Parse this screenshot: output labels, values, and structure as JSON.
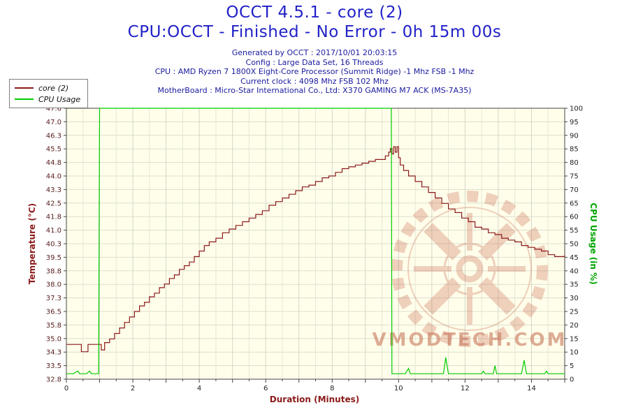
{
  "header": {
    "info_lines": [
      "Generated by OCCT : 2017/10/01 20:03:15",
      "Config : Large Data Set, 16 Threads",
      "CPU : AMD Ryzen 7 1800X Eight-Core Processor (Summit Ridge) -1 Mhz FSB -1 Mhz",
      "Current clock : 4098 Mhz FSB 102 Mhz",
      "MotherBoard : Micro-Star International Co., Ltd: X370 GAMING M7 ACK (MS-7A35)"
    ]
  },
  "watermark": "VMODTECH.COM",
  "chart_data": {
    "type": "line",
    "title": "OCCT 4.5.1 - core (2)",
    "subtitle": "CPU:OCCT - Finished - No Error - 0h 15m 00s",
    "xlabel": "Duration (Minutes)",
    "ylabel_left": "Temperature (°C)",
    "ylabel_right": "CPU Usage (in %)",
    "xlim": [
      0,
      15
    ],
    "ylim_left": [
      32.8,
      47.6
    ],
    "ylim_right": [
      0,
      100
    ],
    "x_ticks": [
      0,
      2,
      4,
      6,
      8,
      10,
      12,
      14
    ],
    "y_ticks_left": [
      "47.6",
      "47.0",
      "46.3",
      "45.5",
      "44.8",
      "44.0",
      "43.3",
      "42.5",
      "41.8",
      "41.0",
      "40.3",
      "39.5",
      "38.8",
      "38.0",
      "37.3",
      "36.5",
      "35.8",
      "35.0",
      "34.3",
      "33.5",
      "32.8"
    ],
    "y_ticks_right": [
      "100",
      "95",
      "90",
      "85",
      "80",
      "75",
      "70",
      "65",
      "60",
      "55",
      "50",
      "45",
      "40",
      "35",
      "30",
      "25",
      "20",
      "15",
      "10",
      "5",
      "0"
    ],
    "grid": true,
    "plot_bg": "#FFFEEA",
    "legend_position": "top-left",
    "series": [
      {
        "name": "core (2)",
        "axis": "left",
        "color": "#8B1A1A",
        "step": true,
        "points": [
          [
            0,
            34.7
          ],
          [
            0.4,
            34.7
          ],
          [
            0.45,
            34.3
          ],
          [
            0.6,
            34.3
          ],
          [
            0.65,
            34.7
          ],
          [
            1.0,
            34.7
          ],
          [
            1.05,
            34.4
          ],
          [
            1.15,
            34.8
          ],
          [
            1.3,
            35.0
          ],
          [
            1.45,
            35.3
          ],
          [
            1.6,
            35.6
          ],
          [
            1.75,
            35.9
          ],
          [
            1.9,
            36.2
          ],
          [
            2.05,
            36.5
          ],
          [
            2.2,
            36.8
          ],
          [
            2.35,
            37.0
          ],
          [
            2.5,
            37.3
          ],
          [
            2.65,
            37.5
          ],
          [
            2.8,
            37.8
          ],
          [
            2.95,
            38.0
          ],
          [
            3.1,
            38.3
          ],
          [
            3.25,
            38.5
          ],
          [
            3.4,
            38.8
          ],
          [
            3.55,
            39.0
          ],
          [
            3.7,
            39.2
          ],
          [
            3.85,
            39.5
          ],
          [
            4.0,
            39.8
          ],
          [
            4.15,
            40.1
          ],
          [
            4.3,
            40.3
          ],
          [
            4.5,
            40.5
          ],
          [
            4.7,
            40.8
          ],
          [
            4.9,
            41.0
          ],
          [
            5.1,
            41.2
          ],
          [
            5.3,
            41.4
          ],
          [
            5.5,
            41.6
          ],
          [
            5.7,
            41.8
          ],
          [
            5.9,
            42.0
          ],
          [
            6.1,
            42.3
          ],
          [
            6.3,
            42.5
          ],
          [
            6.5,
            42.7
          ],
          [
            6.7,
            42.9
          ],
          [
            6.9,
            43.1
          ],
          [
            7.1,
            43.3
          ],
          [
            7.3,
            43.4
          ],
          [
            7.5,
            43.6
          ],
          [
            7.7,
            43.8
          ],
          [
            7.9,
            43.9
          ],
          [
            8.1,
            44.1
          ],
          [
            8.3,
            44.3
          ],
          [
            8.5,
            44.4
          ],
          [
            8.7,
            44.5
          ],
          [
            8.9,
            44.6
          ],
          [
            9.1,
            44.7
          ],
          [
            9.3,
            44.8
          ],
          [
            9.5,
            44.8
          ],
          [
            9.6,
            45.0
          ],
          [
            9.7,
            45.2
          ],
          [
            9.75,
            45.4
          ],
          [
            9.8,
            45.1
          ],
          [
            9.85,
            45.5
          ],
          [
            9.9,
            45.2
          ],
          [
            9.95,
            45.5
          ],
          [
            10.0,
            44.9
          ],
          [
            10.05,
            44.5
          ],
          [
            10.15,
            44.2
          ],
          [
            10.3,
            43.9
          ],
          [
            10.5,
            43.6
          ],
          [
            10.7,
            43.3
          ],
          [
            10.9,
            43.0
          ],
          [
            11.1,
            42.7
          ],
          [
            11.3,
            42.4
          ],
          [
            11.5,
            42.1
          ],
          [
            11.7,
            41.9
          ],
          [
            11.9,
            41.6
          ],
          [
            12.1,
            41.4
          ],
          [
            12.3,
            41.1
          ],
          [
            12.5,
            41.0
          ],
          [
            12.7,
            40.8
          ],
          [
            12.9,
            40.7
          ],
          [
            13.1,
            40.5
          ],
          [
            13.3,
            40.4
          ],
          [
            13.5,
            40.3
          ],
          [
            13.7,
            40.1
          ],
          [
            13.9,
            40.0
          ],
          [
            14.1,
            39.9
          ],
          [
            14.3,
            39.8
          ],
          [
            14.5,
            39.6
          ],
          [
            14.7,
            39.5
          ],
          [
            14.9,
            39.5
          ],
          [
            15,
            39.6
          ]
        ]
      },
      {
        "name": "CPU Usage",
        "axis": "right",
        "color": "#00CC00",
        "step": false,
        "points": [
          [
            0,
            2
          ],
          [
            0.2,
            2
          ],
          [
            0.35,
            3
          ],
          [
            0.4,
            2
          ],
          [
            0.6,
            2
          ],
          [
            0.7,
            3
          ],
          [
            0.75,
            2
          ],
          [
            0.97,
            2
          ],
          [
            1.0,
            100
          ],
          [
            9.78,
            100
          ],
          [
            9.8,
            2
          ],
          [
            10.2,
            2
          ],
          [
            10.3,
            4
          ],
          [
            10.35,
            2
          ],
          [
            11.35,
            2
          ],
          [
            11.42,
            8
          ],
          [
            11.5,
            2
          ],
          [
            12.5,
            2
          ],
          [
            12.55,
            3
          ],
          [
            12.6,
            2
          ],
          [
            12.85,
            2
          ],
          [
            12.9,
            5
          ],
          [
            12.95,
            2
          ],
          [
            13.7,
            2
          ],
          [
            13.78,
            7
          ],
          [
            13.85,
            2
          ],
          [
            14.4,
            2
          ],
          [
            14.45,
            3
          ],
          [
            14.5,
            2
          ],
          [
            15,
            2
          ]
        ]
      }
    ]
  }
}
